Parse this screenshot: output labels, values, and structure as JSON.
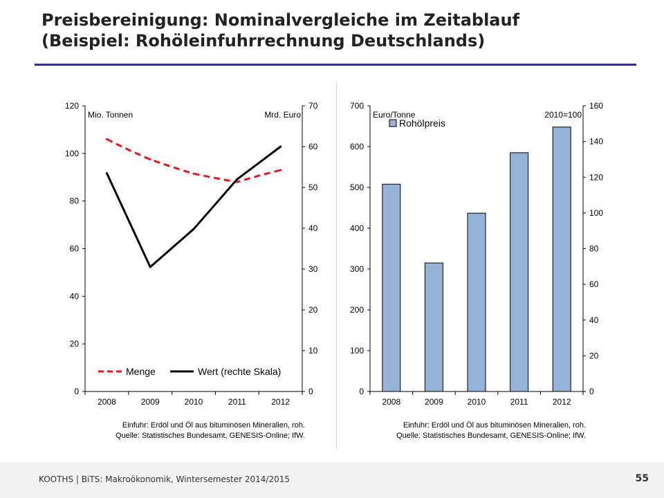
{
  "slide": {
    "title_line1": "Preisbereinigung: Nominalvergleiche im Zeitablauf",
    "title_line2": "(Beispiel: Rohöleinfuhrrechnung Deutschlands)",
    "footer": "KOOTHS | BiTS: Makroökonomik, Wintersemester 2014/2015",
    "page_number": "55",
    "accent_color": "#2e3192"
  },
  "chart_data": [
    {
      "type": "line",
      "categories": [
        "2008",
        "2009",
        "2010",
        "2011",
        "2012"
      ],
      "left_axis": {
        "label": "Mio. Tonnen",
        "ylim": [
          0,
          120
        ],
        "ticks": [
          0,
          20,
          40,
          60,
          80,
          100,
          120
        ]
      },
      "right_axis": {
        "label": "Mrd. Euro",
        "ylim": [
          0,
          70
        ],
        "ticks": [
          0,
          10,
          20,
          30,
          40,
          50,
          60,
          70
        ]
      },
      "series": [
        {
          "name": "Menge",
          "axis": "left",
          "color": "#e8161b",
          "style": "dashed",
          "values": [
            106,
            97.5,
            91.5,
            88,
            93
          ]
        },
        {
          "name": "Wert (rechte Skala)",
          "axis": "right",
          "color": "#000000",
          "style": "solid",
          "values": [
            53.5,
            30.5,
            39.8,
            52,
            60
          ]
        }
      ],
      "legend": "bottom",
      "notes": [
        "Einfuhr: Erdöl und Öl aus bituminösen Mineralien, roh.",
        "Quelle: Statistisches Bundesamt, GENESIS-Online; IfW."
      ]
    },
    {
      "type": "bar",
      "categories": [
        "2008",
        "2009",
        "2010",
        "2011",
        "2012"
      ],
      "left_axis": {
        "label": "Euro/Tonne",
        "ylim": [
          0,
          700
        ],
        "ticks": [
          0,
          100,
          200,
          300,
          400,
          500,
          600,
          700
        ]
      },
      "right_axis": {
        "label": "2010=100",
        "ylim": [
          0,
          160
        ],
        "ticks": [
          0,
          20,
          40,
          60,
          80,
          100,
          120,
          140,
          160
        ]
      },
      "series": [
        {
          "name": "Rohölpreis",
          "axis": "left",
          "color": "#95b3d7",
          "values": [
            508,
            315,
            437,
            585,
            648
          ]
        }
      ],
      "legend": "top-left",
      "notes": [
        "Einfuhr: Erdöl und Öl aus bituminösen Mineralien, roh.",
        "Quelle: Statistisches Bundesamt, GENESIS-Online; IfW."
      ]
    }
  ]
}
